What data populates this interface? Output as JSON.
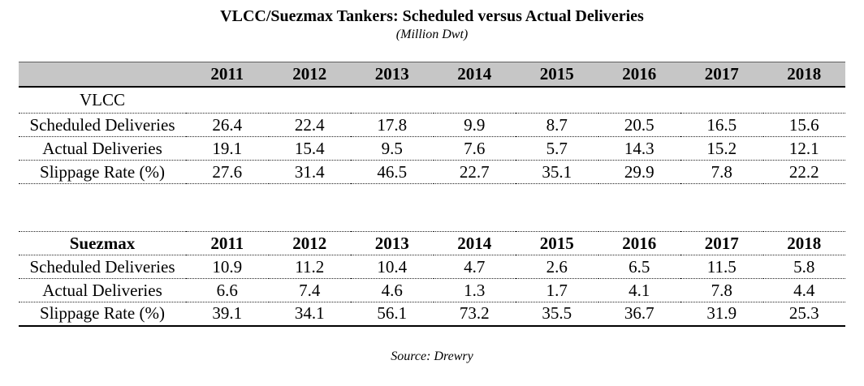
{
  "title": "VLCC/Suezmax Tankers: Scheduled versus Actual Deliveries",
  "subtitle": "(Million Dwt)",
  "source_note": "Source: Drewry",
  "years": [
    "2011",
    "2012",
    "2013",
    "2014",
    "2015",
    "2016",
    "2017",
    "2018"
  ],
  "colors": {
    "header_bg": "#c6c6c6"
  },
  "sections": [
    {
      "name": "VLCC",
      "rows": [
        {
          "label": "Scheduled Deliveries",
          "values": [
            "26.4",
            "22.4",
            "17.8",
            "9.9",
            "8.7",
            "20.5",
            "16.5",
            "15.6"
          ]
        },
        {
          "label": "Actual Deliveries",
          "values": [
            "19.1",
            "15.4",
            "9.5",
            "7.6",
            "5.7",
            "14.3",
            "15.2",
            "12.1"
          ]
        },
        {
          "label": "Slippage Rate (%)",
          "values": [
            "27.6",
            "31.4",
            "46.5",
            "22.7",
            "35.1",
            "29.9",
            "7.8",
            "22.2"
          ]
        }
      ]
    },
    {
      "name": "Suezmax",
      "rows": [
        {
          "label": "Scheduled Deliveries",
          "values": [
            "10.9",
            "11.2",
            "10.4",
            "4.7",
            "2.6",
            "6.5",
            "11.5",
            "5.8"
          ]
        },
        {
          "label": "Actual Deliveries",
          "values": [
            "6.6",
            "7.4",
            "4.6",
            "1.3",
            "1.7",
            "4.1",
            "7.8",
            "4.4"
          ]
        },
        {
          "label": "Slippage Rate (%)",
          "values": [
            "39.1",
            "34.1",
            "56.1",
            "73.2",
            "35.5",
            "36.7",
            "31.9",
            "25.3"
          ]
        }
      ]
    }
  ],
  "chart_data": [
    {
      "type": "table",
      "title": "VLCC/Suezmax Tankers: Scheduled versus Actual Deliveries",
      "subtitle": "(Million Dwt)",
      "group": "VLCC",
      "categories": [
        2011,
        2012,
        2013,
        2014,
        2015,
        2016,
        2017,
        2018
      ],
      "series": [
        {
          "name": "Scheduled Deliveries",
          "values": [
            26.4,
            22.4,
            17.8,
            9.9,
            8.7,
            20.5,
            16.5,
            15.6
          ]
        },
        {
          "name": "Actual Deliveries",
          "values": [
            19.1,
            15.4,
            9.5,
            7.6,
            5.7,
            14.3,
            15.2,
            12.1
          ]
        },
        {
          "name": "Slippage Rate (%)",
          "values": [
            27.6,
            31.4,
            46.5,
            22.7,
            35.1,
            29.9,
            7.8,
            22.2
          ]
        }
      ],
      "source": "Drewry"
    },
    {
      "type": "table",
      "group": "Suezmax",
      "categories": [
        2011,
        2012,
        2013,
        2014,
        2015,
        2016,
        2017,
        2018
      ],
      "series": [
        {
          "name": "Scheduled Deliveries",
          "values": [
            10.9,
            11.2,
            10.4,
            4.7,
            2.6,
            6.5,
            11.5,
            5.8
          ]
        },
        {
          "name": "Actual Deliveries",
          "values": [
            6.6,
            7.4,
            4.6,
            1.3,
            1.7,
            4.1,
            7.8,
            4.4
          ]
        },
        {
          "name": "Slippage Rate (%)",
          "values": [
            39.1,
            34.1,
            56.1,
            73.2,
            35.5,
            36.7,
            31.9,
            25.3
          ]
        }
      ],
      "source": "Drewry"
    }
  ]
}
